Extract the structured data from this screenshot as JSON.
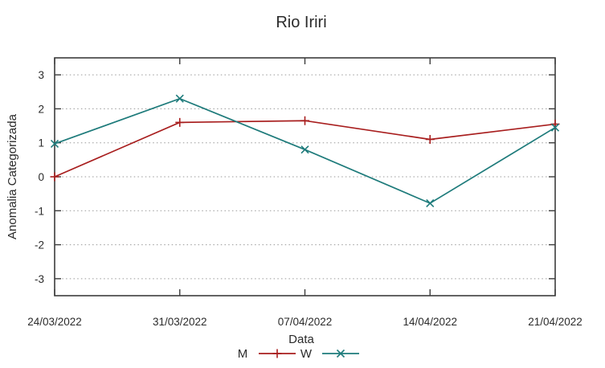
{
  "chart_data": {
    "type": "line",
    "title": "Rio Iriri",
    "xlabel": "Data",
    "ylabel": "Anomalia Categorizada",
    "categories": [
      "24/03/2022",
      "31/03/2022",
      "07/04/2022",
      "14/04/2022",
      "21/04/2022"
    ],
    "series": [
      {
        "name": "M",
        "color": "#a81e1e",
        "marker": "plus",
        "values": [
          0.0,
          1.6,
          1.65,
          1.1,
          1.55
        ]
      },
      {
        "name": "W",
        "color": "#1e7b7b",
        "marker": "cross",
        "values": [
          0.97,
          2.3,
          0.8,
          -0.78,
          1.45
        ]
      }
    ],
    "ylim": [
      -3.5,
      3.5
    ],
    "yticks": [
      -3,
      -2,
      -1,
      0,
      1,
      2,
      3
    ],
    "grid": true,
    "grid_style": "dotted",
    "legend_position": "bottom-center"
  }
}
